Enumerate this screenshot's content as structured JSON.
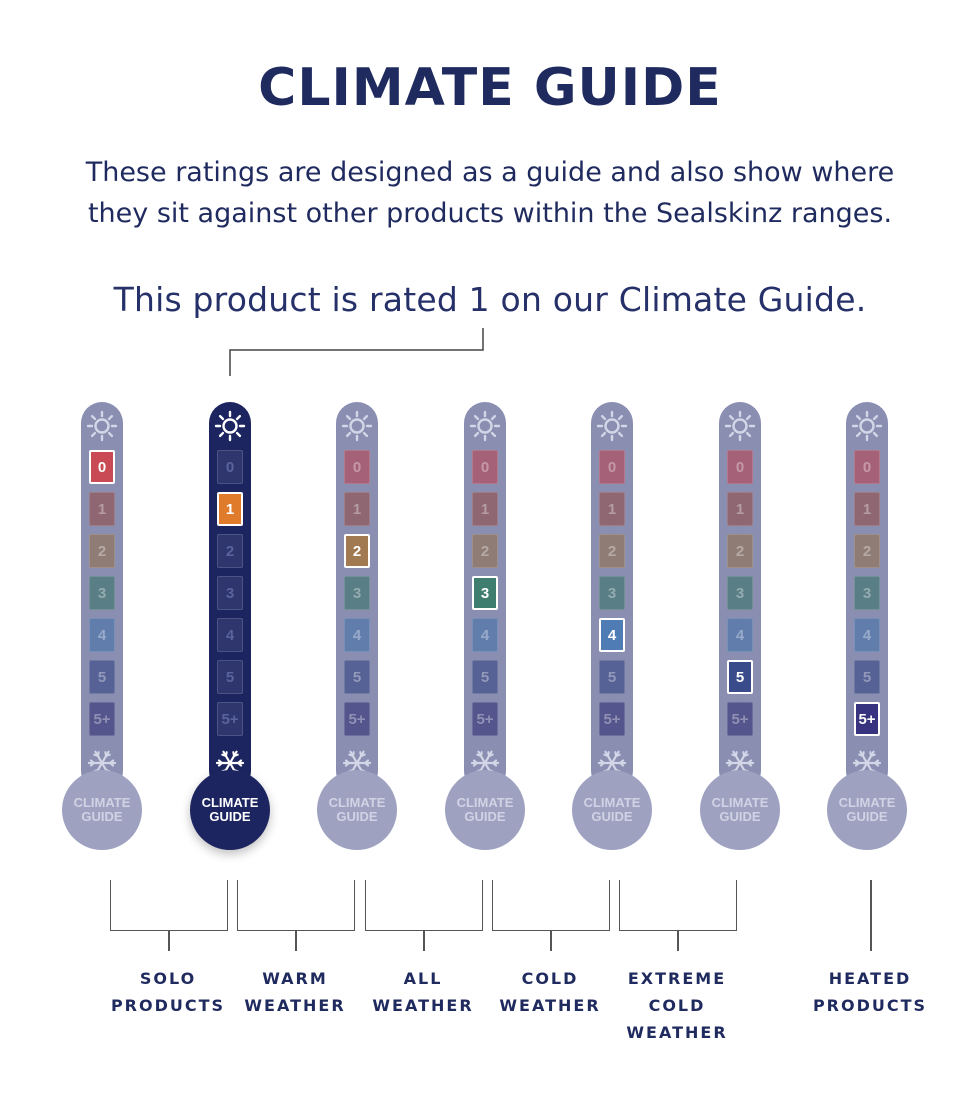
{
  "header": {
    "title": "CLIMATE GUIDE",
    "subtitle_line1": "These ratings are designed as a guide and also show where",
    "subtitle_line2": "they sit against other products within the Sealskinz ranges.",
    "rating_sentence": "This product is rated 1 on our Climate Guide."
  },
  "product_rating": 1,
  "scale_levels": [
    "0",
    "1",
    "2",
    "3",
    "4",
    "5",
    "5+"
  ],
  "level_colors": [
    "#c94a55",
    "#a0544f",
    "#a27a52",
    "#3f7e6e",
    "#4f7cb5",
    "#3a4b8c",
    "#38337e"
  ],
  "bulb_text_line1": "CLIMATE",
  "bulb_text_line2": "GUIDE",
  "icons": {
    "top": "sun-icon",
    "bottom": "snowflake-icon"
  },
  "thermometers": [
    {
      "highlight": "0",
      "active": false
    },
    {
      "highlight": "1",
      "active": true
    },
    {
      "highlight": "2",
      "active": false
    },
    {
      "highlight": "3",
      "active": false
    },
    {
      "highlight": "4",
      "active": false
    },
    {
      "highlight": "5",
      "active": false
    },
    {
      "highlight": "5+",
      "active": false
    }
  ],
  "categories": [
    {
      "line1": "SOLO",
      "line2": "PRODUCTS",
      "line3": ""
    },
    {
      "line1": "WARM",
      "line2": "WEATHER",
      "line3": ""
    },
    {
      "line1": "ALL",
      "line2": "WEATHER",
      "line3": ""
    },
    {
      "line1": "COLD",
      "line2": "WEATHER",
      "line3": ""
    },
    {
      "line1": "EXTREME",
      "line2": "COLD",
      "line3": "WEATHER"
    },
    {
      "line1": "HEATED",
      "line2": "PRODUCTS",
      "line3": ""
    }
  ],
  "colors": {
    "navy": "#1d2560",
    "accent_orange": "#e07b2c",
    "inactive": "#8a8fb2"
  }
}
